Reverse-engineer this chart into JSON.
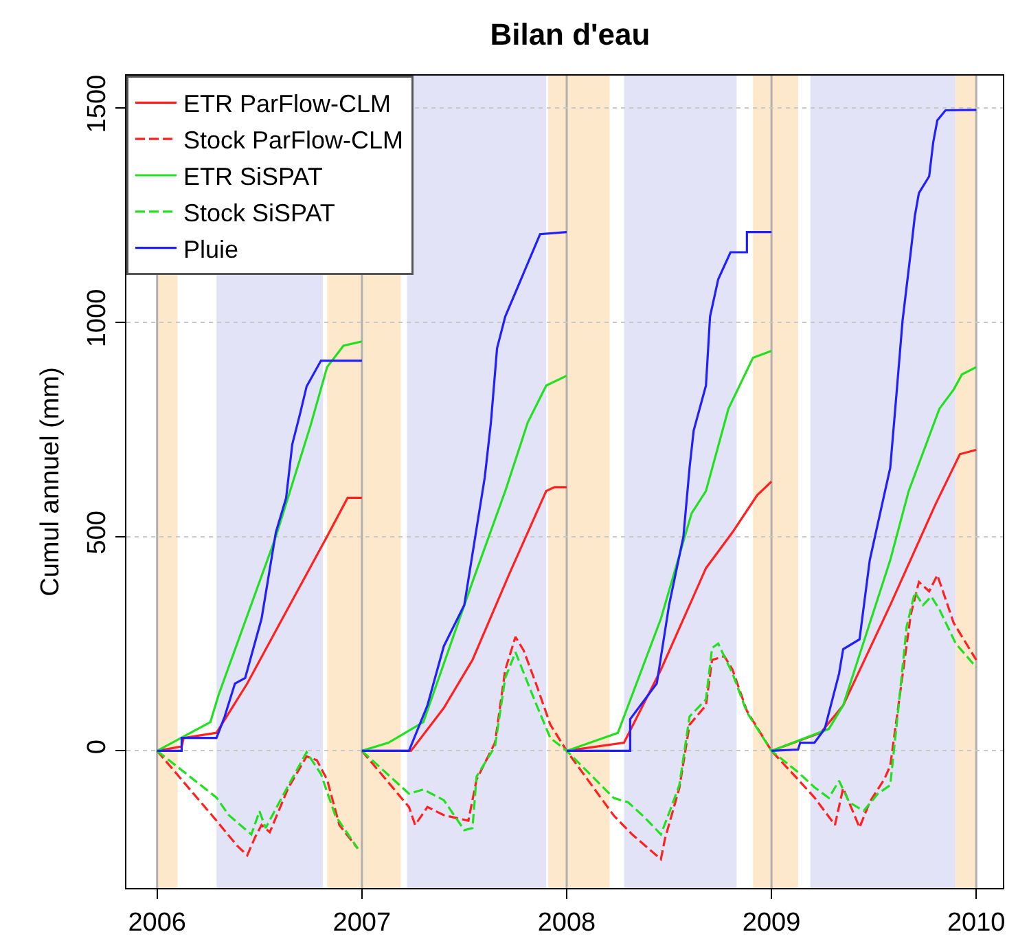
{
  "chart_data": {
    "type": "line",
    "title": "Bilan d'eau",
    "ylabel": "Cumul annuel (mm)",
    "xlim": [
      2005.85,
      2010.13
    ],
    "xticks": [
      2006,
      2007,
      2008,
      2009,
      2010
    ],
    "ylim": [
      -320,
      1575
    ],
    "yticks": [
      0,
      500,
      1000,
      1500
    ],
    "grid": "y",
    "legend": "top left",
    "marker": "none",
    "bands": [
      {
        "axis": "x",
        "from": 2006.0,
        "to": 2006.1,
        "color": "#fde8cc"
      },
      {
        "axis": "x",
        "from": 2006.29,
        "to": 2006.81,
        "color": "#e3e3f7"
      },
      {
        "axis": "x",
        "from": 2006.83,
        "to": 2007.19,
        "color": "#fde8cc"
      },
      {
        "axis": "x",
        "from": 2007.22,
        "to": 2007.9,
        "color": "#e3e3f7"
      },
      {
        "axis": "x",
        "from": 2007.91,
        "to": 2008.21,
        "color": "#fde8cc"
      },
      {
        "axis": "x",
        "from": 2008.28,
        "to": 2008.83,
        "color": "#e3e3f7"
      },
      {
        "axis": "x",
        "from": 2008.91,
        "to": 2009.13,
        "color": "#fde8cc"
      },
      {
        "axis": "x",
        "from": 2009.19,
        "to": 2009.9,
        "color": "#e3e3f7"
      },
      {
        "axis": "x",
        "from": 2009.9,
        "to": 2010.0,
        "color": "#fde8cc"
      }
    ],
    "ref_lines": [
      {
        "axis": "x",
        "value": 2006,
        "color": "#b0b0b0"
      },
      {
        "axis": "x",
        "value": 2007,
        "color": "#b0b0b0"
      },
      {
        "axis": "x",
        "value": 2008,
        "color": "#b0b0b0"
      },
      {
        "axis": "x",
        "value": 2009,
        "color": "#b0b0b0"
      },
      {
        "axis": "x",
        "value": 2010,
        "color": "#b0b0b0"
      }
    ],
    "series": [
      {
        "name": "ETR ParFlow-CLM",
        "color": "#ff2020",
        "line_style": "solid",
        "x": [
          2006,
          2006.12,
          2006.13,
          2006.29,
          2006.44,
          2006.6,
          2006.83,
          2006.93,
          2007
        ],
        "values": [
          0,
          10,
          30,
          42,
          157,
          298,
          500,
          590,
          590
        ]
      },
      {
        "name": "Stock ParFlow-CLM",
        "color": "#ff2020",
        "line_style": "dashed",
        "x": [
          2006,
          2006.29,
          2006.39,
          2006.44,
          2006.48,
          2006.51,
          2006.55,
          2006.64,
          2006.73,
          2006.78,
          2006.83,
          2006.89,
          2006.98
        ],
        "values": [
          0,
          -163,
          -221,
          -244,
          -200,
          -173,
          -190,
          -87,
          -13,
          -22,
          -67,
          -173,
          -228
        ]
      },
      {
        "name": "ETR SiSPAT",
        "color": "#20e020",
        "line_style": "solid",
        "x": [
          2006,
          2006.26,
          2006.3,
          2006.58,
          2006.75,
          2006.83,
          2006.91,
          2007
        ],
        "values": [
          0,
          67,
          130,
          500,
          760,
          895,
          945,
          955
        ]
      },
      {
        "name": "Stock SiSPAT",
        "color": "#20e020",
        "line_style": "dashed",
        "x": [
          2006,
          2006.29,
          2006.35,
          2006.46,
          2006.5,
          2006.53,
          2006.62,
          2006.73,
          2006.8,
          2006.87,
          2006.98
        ],
        "values": [
          0,
          -109,
          -150,
          -195,
          -141,
          -180,
          -99,
          -3,
          -54,
          -151,
          -228
        ]
      },
      {
        "name": "Pluie",
        "color": "#2020ff",
        "line_style": "solid",
        "x": [
          2006,
          2006.12,
          2006.12,
          2006.29,
          2006.33,
          2006.38,
          2006.43,
          2006.51,
          2006.58,
          2006.63,
          2006.66,
          2006.7,
          2006.73,
          2006.8,
          2007
        ],
        "values": [
          0,
          0,
          30,
          30,
          80,
          157,
          170,
          308,
          510,
          590,
          715,
          790,
          850,
          910,
          910
        ]
      },
      {
        "color": "#ff2020",
        "line_style": "solid",
        "x": [
          2007,
          2007.24,
          2007.4,
          2007.54,
          2007.72,
          2007.9,
          2007.94,
          2008
        ],
        "values": [
          0,
          0,
          100,
          212,
          413,
          606,
          615,
          615
        ]
      },
      {
        "color": "#ff2020",
        "line_style": "dashed",
        "x": [
          2007,
          2007.23,
          2007.26,
          2007.32,
          2007.4,
          2007.52,
          2007.56,
          2007.65,
          2007.7,
          2007.75,
          2007.79,
          2007.85,
          2007.92,
          2008,
          2008.23,
          2008.32,
          2008.46,
          2008.48,
          2008.55,
          2008.6,
          2008.68,
          2008.71,
          2008.77,
          2008.81,
          2008.88,
          2009,
          2009.13,
          2009.21,
          2009.31,
          2009.35,
          2009.43,
          2009.48,
          2009.55,
          2009.58,
          2009.62,
          2009.68,
          2009.72,
          2009.77,
          2009.81,
          2009.89,
          2010
        ],
        "values": [
          0,
          -131,
          -173,
          -131,
          -150,
          -163,
          -67,
          19,
          189,
          266,
          234,
          157,
          61,
          0,
          -151,
          -195,
          -253,
          -205,
          -87,
          61,
          106,
          212,
          221,
          189,
          93,
          0,
          -67,
          -109,
          -173,
          -87,
          -179,
          -119,
          -67,
          -35,
          106,
          317,
          394,
          372,
          410,
          298,
          212
        ]
      },
      {
        "color": "#20e020",
        "line_style": "solid",
        "x": [
          2007,
          2007.13,
          2007.3,
          2007.54,
          2007.7,
          2007.81,
          2007.9,
          2008
        ],
        "values": [
          0,
          19,
          67,
          394,
          606,
          766,
          852,
          875
        ]
      },
      {
        "color": "#20e020",
        "line_style": "dashed",
        "x": [
          2007,
          2007.23,
          2007.3,
          2007.4,
          2007.5,
          2007.54,
          2007.56,
          2007.65,
          2007.7,
          2007.75,
          2007.85,
          2007.92,
          2008,
          2008.23,
          2008.3,
          2008.38,
          2008.46,
          2008.5,
          2008.55,
          2008.6,
          2008.68,
          2008.71,
          2008.74,
          2008.81,
          2008.88,
          2009,
          2009.13,
          2009.21,
          2009.28,
          2009.33,
          2009.38,
          2009.45,
          2009.52,
          2009.58,
          2009.62,
          2009.66,
          2009.7,
          2009.74,
          2009.78,
          2009.82,
          2009.9,
          2010
        ],
        "values": [
          0,
          -100,
          -90,
          -115,
          -185,
          -180,
          -60,
          10,
          170,
          230,
          110,
          30,
          0,
          -110,
          -120,
          -155,
          -195,
          -145,
          -80,
          80,
          120,
          240,
          250,
          180,
          90,
          0,
          -50,
          -85,
          -110,
          -70,
          -120,
          -140,
          -100,
          -80,
          100,
          290,
          370,
          340,
          360,
          330,
          250,
          195
        ]
      },
      {
        "color": "#2020ff",
        "line_style": "solid",
        "x": [
          2007,
          2007.23,
          2007.32,
          2007.4,
          2007.5,
          2007.6,
          2007.63,
          2007.66,
          2007.7,
          2007.87,
          2008
        ],
        "values": [
          0,
          0,
          106,
          244,
          340,
          638,
          766,
          939,
          1013,
          1205,
          1210
        ]
      },
      {
        "color": "#ff2020",
        "line_style": "solid",
        "x": [
          2008,
          2008.28,
          2008.46,
          2008.68,
          2008.81,
          2008.93,
          2009
        ],
        "values": [
          0,
          19,
          189,
          426,
          510,
          596,
          628
        ]
      },
      {
        "color": "#20e020",
        "line_style": "solid",
        "x": [
          2008,
          2008.25,
          2008.46,
          2008.61,
          2008.68,
          2008.79,
          2008.91,
          2009
        ],
        "values": [
          0,
          42,
          308,
          554,
          606,
          798,
          917,
          933
        ]
      },
      {
        "color": "#2020ff",
        "line_style": "solid",
        "x": [
          2008,
          2008.31,
          2008.31,
          2008.44,
          2008.5,
          2008.57,
          2008.6,
          2008.62,
          2008.68,
          2008.7,
          2008.74,
          2008.8,
          2008.88,
          2008.88,
          2009
        ],
        "values": [
          0,
          0,
          74,
          157,
          340,
          500,
          660,
          747,
          852,
          1013,
          1100,
          1163,
          1163,
          1210,
          1210
        ]
      },
      {
        "color": "#ff2020",
        "line_style": "solid",
        "x": [
          2009,
          2009.24,
          2009.35,
          2009.58,
          2009.8,
          2009.92,
          2010
        ],
        "values": [
          0,
          42,
          106,
          340,
          574,
          692,
          702
        ]
      },
      {
        "color": "#20e020",
        "line_style": "solid",
        "x": [
          2009,
          2009.28,
          2009.35,
          2009.58,
          2009.67,
          2009.82,
          2009.89,
          2009.93,
          2010
        ],
        "values": [
          0,
          51,
          106,
          445,
          606,
          798,
          843,
          878,
          895
        ]
      },
      {
        "color": "#2020ff",
        "line_style": "solid",
        "x": [
          2009,
          2009.13,
          2009.14,
          2009.21,
          2009.26,
          2009.33,
          2009.35,
          2009.43,
          2009.48,
          2009.55,
          2009.58,
          2009.61,
          2009.64,
          2009.68,
          2009.7,
          2009.72,
          2009.77,
          2009.79,
          2009.81,
          2009.85,
          2010
        ],
        "values": [
          0,
          3,
          19,
          19,
          51,
          180,
          237,
          260,
          445,
          596,
          660,
          830,
          1003,
          1163,
          1247,
          1301,
          1340,
          1420,
          1471,
          1494,
          1495
        ]
      }
    ]
  }
}
